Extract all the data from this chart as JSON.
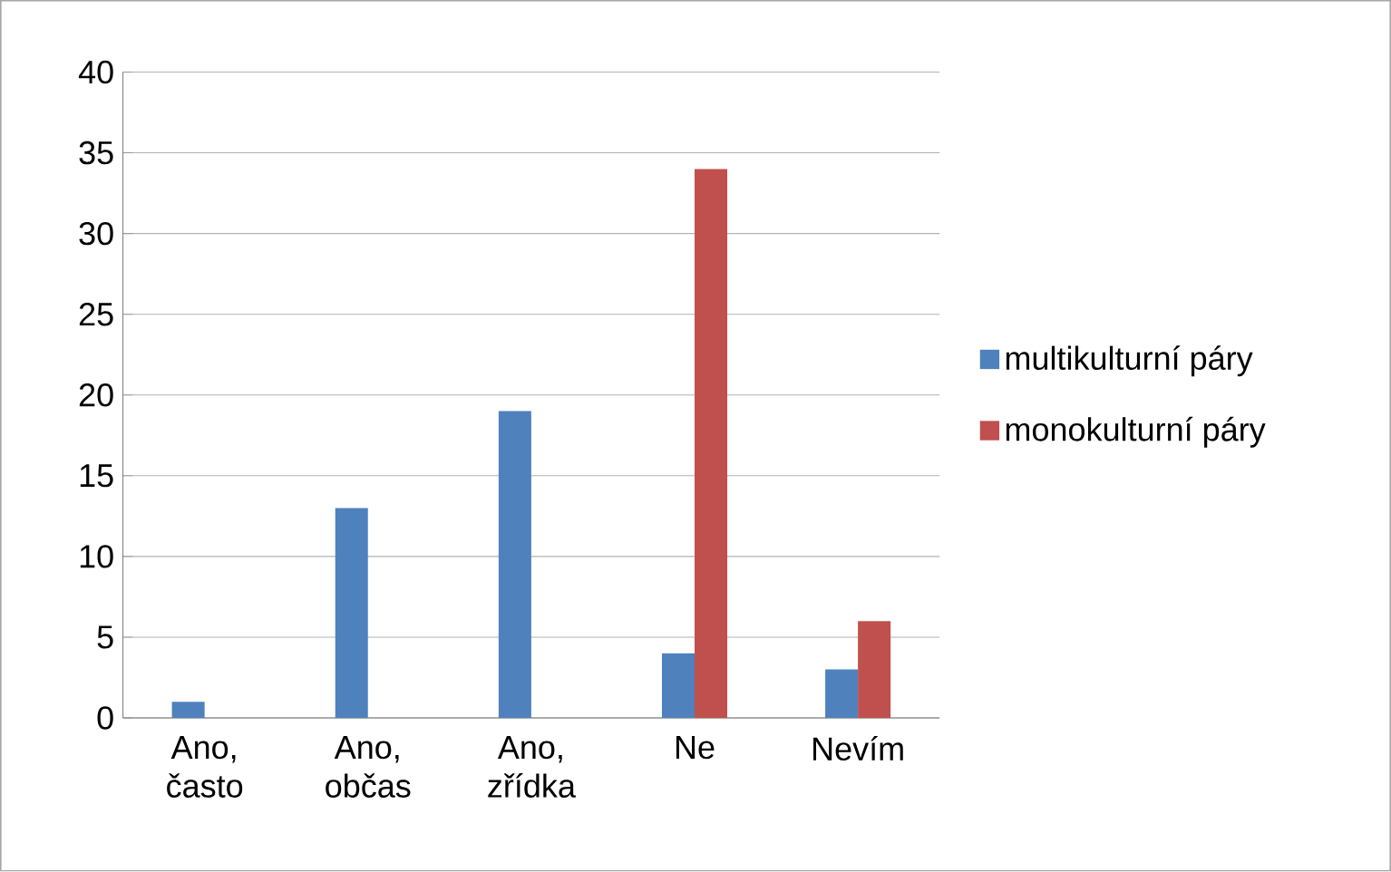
{
  "chart_data": {
    "type": "bar",
    "categories": [
      "Ano, často",
      "Ano, občas",
      "Ano, zřídka",
      "Ne",
      "Nevím"
    ],
    "series": [
      {
        "name": "multikulturní páry",
        "color": "#4f81bd",
        "values": [
          1,
          13,
          19,
          4,
          3
        ]
      },
      {
        "name": "monokulturní páry",
        "color": "#c0504d",
        "values": [
          0,
          0,
          0,
          34,
          6
        ]
      }
    ],
    "ylim": [
      0,
      40
    ],
    "yticks": [
      0,
      5,
      10,
      15,
      20,
      25,
      30,
      35,
      40
    ],
    "grid": "y",
    "legend": "right"
  }
}
